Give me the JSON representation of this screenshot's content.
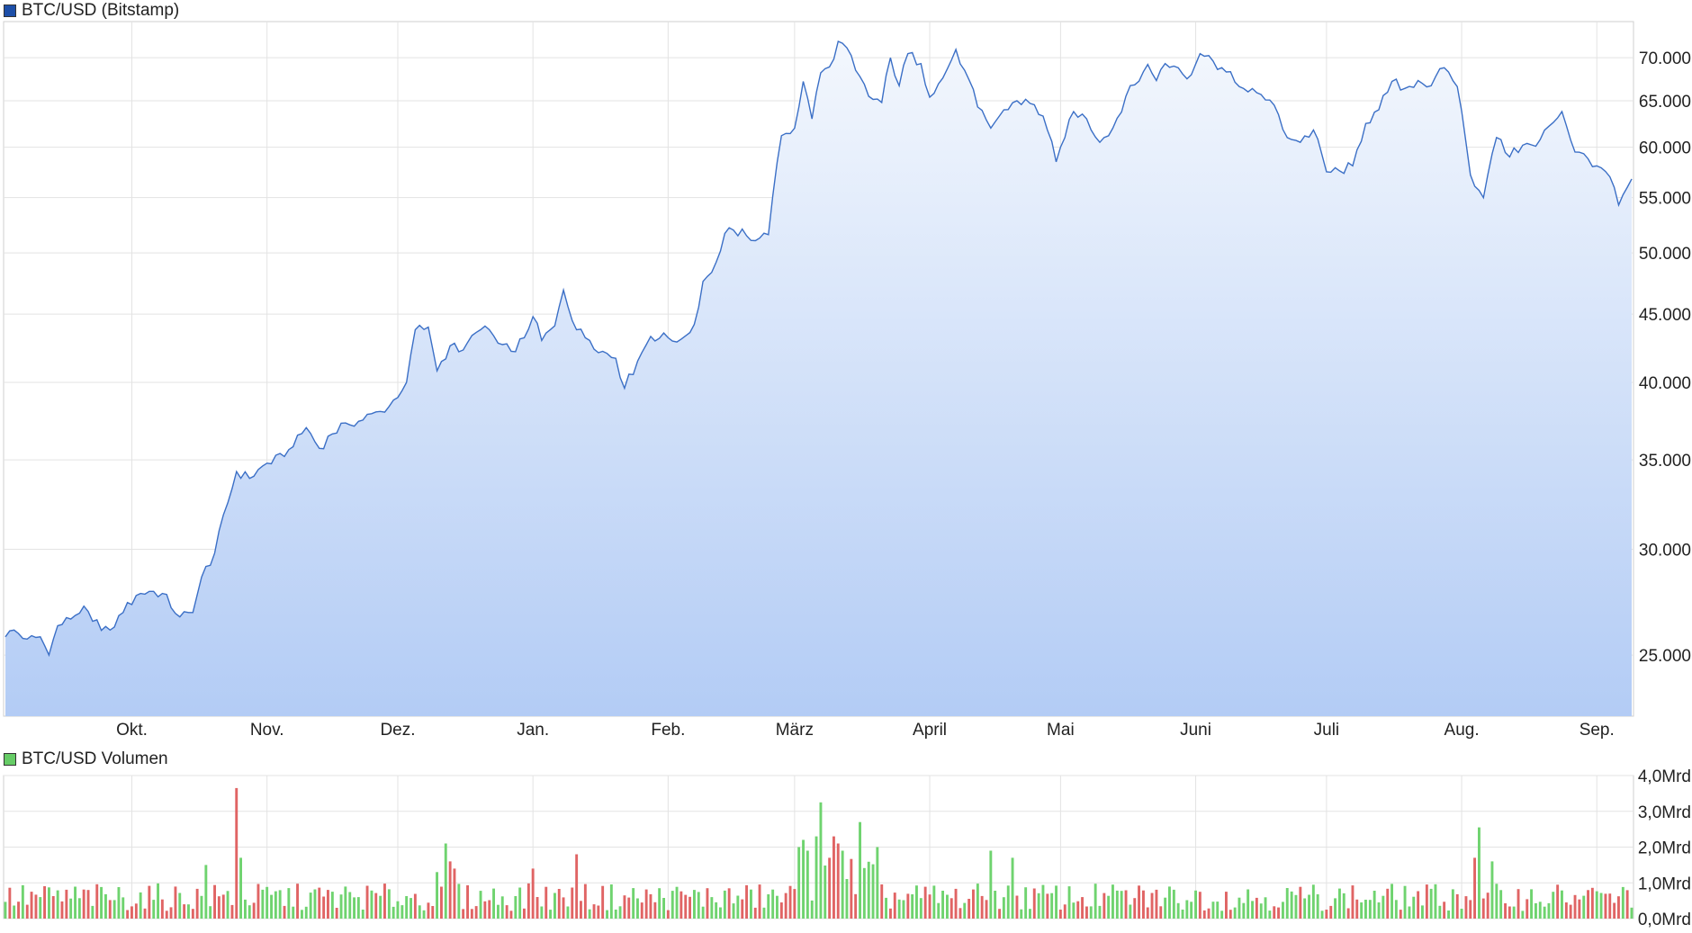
{
  "legend": {
    "price_label": "BTC/USD (Bitstamp)",
    "price_color": "#1d4fa8",
    "volume_label": "BTC/USD Volumen",
    "volume_color": "#66cc66"
  },
  "colors": {
    "line": "#3b6fc6",
    "fill_top": "#f3f7fd",
    "fill_bottom": "#b3ccf5",
    "grid": "#e3e3e3",
    "vol_up": "#6fd36f",
    "vol_down": "#e06464"
  },
  "chart_data": [
    {
      "type": "area",
      "name": "BTC/USD (Bitstamp)",
      "yscale": "log",
      "ylim": [
        22500,
        74500
      ],
      "yticks": [
        25000,
        30000,
        35000,
        40000,
        45000,
        50000,
        55000,
        60000,
        65000,
        70000
      ],
      "ytick_labels": [
        "25.000",
        "30.000",
        "35.000",
        "40.000",
        "45.000",
        "50.000",
        "55.000",
        "60.000",
        "65.000",
        "70.000"
      ],
      "months": [
        "Okt.",
        "Nov.",
        "Dez.",
        "Jan.",
        "Feb.",
        "März",
        "April",
        "Mai",
        "Juni",
        "Juli",
        "Aug.",
        "Sep."
      ],
      "month_start_days": [
        29,
        60,
        90,
        121,
        152,
        181,
        212,
        242,
        273,
        303,
        334,
        365
      ],
      "total_days": 373,
      "anchors": [
        [
          0,
          25800
        ],
        [
          2,
          26100
        ],
        [
          5,
          25700
        ],
        [
          8,
          25800
        ],
        [
          10,
          25000
        ],
        [
          12,
          26300
        ],
        [
          15,
          26600
        ],
        [
          18,
          27200
        ],
        [
          20,
          26500
        ],
        [
          24,
          26100
        ],
        [
          27,
          26900
        ],
        [
          30,
          27700
        ],
        [
          33,
          27900
        ],
        [
          36,
          27800
        ],
        [
          40,
          26700
        ],
        [
          43,
          26900
        ],
        [
          45,
          28600
        ],
        [
          48,
          29800
        ],
        [
          51,
          32500
        ],
        [
          53,
          34300
        ],
        [
          56,
          33900
        ],
        [
          60,
          34800
        ],
        [
          64,
          35200
        ],
        [
          66,
          35800
        ],
        [
          69,
          37000
        ],
        [
          72,
          35700
        ],
        [
          75,
          36600
        ],
        [
          78,
          37300
        ],
        [
          81,
          37400
        ],
        [
          84,
          37900
        ],
        [
          87,
          38000
        ],
        [
          89,
          38800
        ],
        [
          92,
          40000
        ],
        [
          94,
          43800
        ],
        [
          97,
          44000
        ],
        [
          99,
          40800
        ],
        [
          102,
          42600
        ],
        [
          105,
          42300
        ],
        [
          108,
          43600
        ],
        [
          111,
          43800
        ],
        [
          113,
          42800
        ],
        [
          116,
          42200
        ],
        [
          119,
          43200
        ],
        [
          121,
          44800
        ],
        [
          123,
          43000
        ],
        [
          126,
          44100
        ],
        [
          128,
          46900
        ],
        [
          131,
          43800
        ],
        [
          134,
          43000
        ],
        [
          137,
          42200
        ],
        [
          140,
          41700
        ],
        [
          142,
          39600
        ],
        [
          145,
          41500
        ],
        [
          148,
          43300
        ],
        [
          152,
          43200
        ],
        [
          155,
          43100
        ],
        [
          158,
          44200
        ],
        [
          160,
          47600
        ],
        [
          163,
          49200
        ],
        [
          165,
          51700
        ],
        [
          167,
          52000
        ],
        [
          170,
          51500
        ],
        [
          173,
          51300
        ],
        [
          175,
          51600
        ],
        [
          178,
          61200
        ],
        [
          181,
          62000
        ],
        [
          183,
          67200
        ],
        [
          185,
          63000
        ],
        [
          187,
          68200
        ],
        [
          189,
          68900
        ],
        [
          191,
          72000
        ],
        [
          193,
          71200
        ],
        [
          195,
          68500
        ],
        [
          198,
          65500
        ],
        [
          201,
          64800
        ],
        [
          203,
          70000
        ],
        [
          205,
          66700
        ],
        [
          207,
          70500
        ],
        [
          210,
          69300
        ],
        [
          212,
          65400
        ],
        [
          215,
          67600
        ],
        [
          218,
          71000
        ],
        [
          220,
          68500
        ],
        [
          223,
          64300
        ],
        [
          226,
          62000
        ],
        [
          229,
          64000
        ],
        [
          232,
          65000
        ],
        [
          235,
          64700
        ],
        [
          238,
          63300
        ],
        [
          241,
          58500
        ],
        [
          243,
          61000
        ],
        [
          245,
          63800
        ],
        [
          248,
          63000
        ],
        [
          251,
          60500
        ],
        [
          254,
          62000
        ],
        [
          257,
          65500
        ],
        [
          259,
          66800
        ],
        [
          262,
          69200
        ],
        [
          264,
          67300
        ],
        [
          266,
          69300
        ],
        [
          269,
          68800
        ],
        [
          271,
          67500
        ],
        [
          274,
          70500
        ],
        [
          277,
          69600
        ],
        [
          280,
          68300
        ],
        [
          283,
          66600
        ],
        [
          285,
          66000
        ],
        [
          288,
          65700
        ],
        [
          291,
          64500
        ],
        [
          294,
          61000
        ],
        [
          297,
          60500
        ],
        [
          300,
          61800
        ],
        [
          303,
          57500
        ],
        [
          306,
          57600
        ],
        [
          309,
          58100
        ],
        [
          312,
          62500
        ],
        [
          315,
          64000
        ],
        [
          318,
          67200
        ],
        [
          321,
          66400
        ],
        [
          324,
          67300
        ],
        [
          327,
          66700
        ],
        [
          330,
          68800
        ],
        [
          333,
          66600
        ],
        [
          336,
          57200
        ],
        [
          339,
          55000
        ],
        [
          342,
          61000
        ],
        [
          345,
          59000
        ],
        [
          348,
          60200
        ],
        [
          351,
          60100
        ],
        [
          354,
          62200
        ],
        [
          357,
          63800
        ],
        [
          360,
          59500
        ],
        [
          363,
          58800
        ],
        [
          366,
          57900
        ],
        [
          368,
          57000
        ],
        [
          370,
          54300
        ],
        [
          373,
          56800
        ]
      ]
    },
    {
      "type": "bar",
      "name": "BTC/USD Volumen",
      "ylim": [
        0,
        4.0
      ],
      "yticks": [
        0,
        1,
        2,
        3,
        4
      ],
      "ytick_labels": [
        "0,0Mrd",
        "1,0Mrd",
        "2,0Mrd",
        "3,0Mrd",
        "4,0Mrd"
      ],
      "baseline": 0.48,
      "spikes": [
        [
          46,
          1.5
        ],
        [
          53,
          3.65
        ],
        [
          54,
          1.7
        ],
        [
          99,
          1.3
        ],
        [
          101,
          2.1
        ],
        [
          102,
          1.6
        ],
        [
          103,
          1.4
        ],
        [
          121,
          1.4
        ],
        [
          131,
          1.8
        ],
        [
          182,
          2.0
        ],
        [
          183,
          2.2
        ],
        [
          184,
          1.9
        ],
        [
          186,
          2.3
        ],
        [
          187,
          3.25
        ],
        [
          189,
          1.7
        ],
        [
          190,
          2.3
        ],
        [
          191,
          2.1
        ],
        [
          192,
          1.9
        ],
        [
          196,
          2.7
        ],
        [
          200,
          2.0
        ],
        [
          226,
          1.9
        ],
        [
          231,
          1.7
        ],
        [
          338,
          2.55
        ],
        [
          337,
          1.7
        ],
        [
          341,
          1.6
        ]
      ]
    }
  ]
}
